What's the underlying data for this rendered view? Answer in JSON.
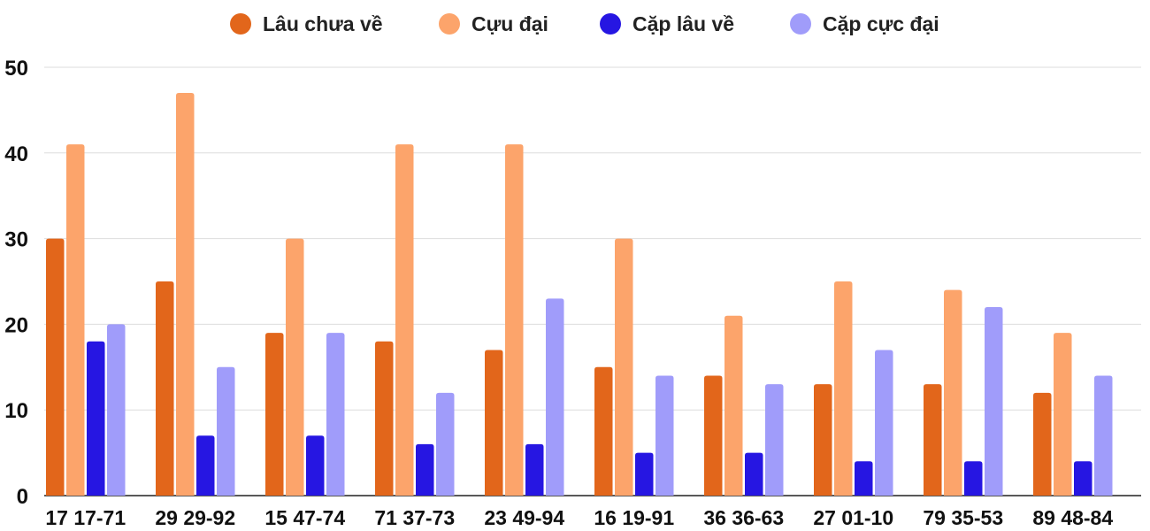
{
  "chart_data": {
    "type": "bar",
    "categories": [
      "17 17-71",
      "29 29-92",
      "15 47-74",
      "71 37-73",
      "23 49-94",
      "16 19-91",
      "36 36-63",
      "27 01-10",
      "79 35-53",
      "89 48-84"
    ],
    "series": [
      {
        "name": "Lâu chưa về",
        "color": "#e2661b",
        "values": [
          30,
          25,
          19,
          18,
          17,
          15,
          14,
          13,
          13,
          12
        ]
      },
      {
        "name": "Cựu đại",
        "color": "#fca46b",
        "values": [
          41,
          47,
          30,
          41,
          41,
          30,
          21,
          25,
          24,
          19
        ]
      },
      {
        "name": "Cặp lâu về",
        "color": "#2616e2",
        "values": [
          18,
          7,
          7,
          6,
          6,
          5,
          5,
          4,
          4,
          4
        ]
      },
      {
        "name": "Cặp cực đại",
        "color": "#a09cfa",
        "values": [
          20,
          15,
          19,
          12,
          23,
          14,
          13,
          17,
          22,
          14
        ]
      }
    ],
    "ylim": [
      0,
      50
    ],
    "yticks": [
      "0",
      "10",
      "20",
      "30",
      "40",
      "50"
    ],
    "grid": true,
    "legend_position": "top-center"
  }
}
